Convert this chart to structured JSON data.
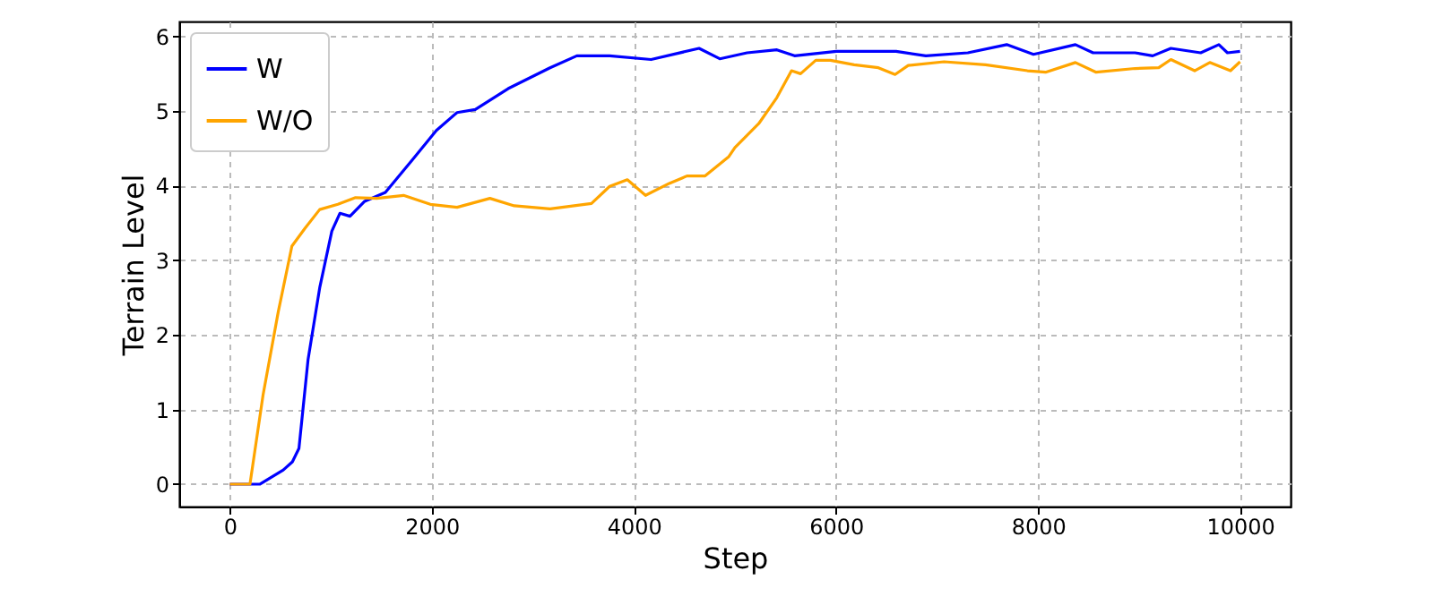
{
  "chart_data": {
    "type": "line",
    "xlabel": "Step",
    "ylabel": "Terrain Level",
    "xlim": [
      -500,
      10500
    ],
    "ylim": [
      -0.3,
      6.2
    ],
    "xticks": [
      0,
      2000,
      4000,
      6000,
      8000,
      10000
    ],
    "yticks": [
      0,
      1,
      2,
      3,
      4,
      5,
      6
    ],
    "grid": true,
    "legend": "top left",
    "line_style": "solid",
    "marker": "none",
    "series": [
      {
        "name": "W",
        "color": "#0000ff",
        "x": [
          0,
          300,
          530,
          620,
          685,
          775,
          890,
          1010,
          1090,
          1190,
          1335,
          1540,
          1810,
          2045,
          2250,
          2430,
          2755,
          3170,
          3435,
          3760,
          4170,
          4645,
          4850,
          5120,
          5415,
          5590,
          6005,
          6595,
          6890,
          7305,
          7690,
          7955,
          8370,
          8545,
          8960,
          9135,
          9315,
          9610,
          9790,
          9875,
          10000
        ],
        "values": [
          0,
          0,
          0.19,
          0.3,
          0.48,
          1.67,
          2.63,
          3.39,
          3.63,
          3.59,
          3.79,
          3.91,
          4.35,
          4.74,
          4.98,
          5.02,
          5.3,
          5.58,
          5.74,
          5.74,
          5.69,
          5.84,
          5.7,
          5.78,
          5.82,
          5.74,
          5.8,
          5.8,
          5.74,
          5.78,
          5.89,
          5.76,
          5.89,
          5.78,
          5.78,
          5.74,
          5.84,
          5.78,
          5.89,
          5.78,
          5.8
        ]
      },
      {
        "name": "W/O",
        "color": "#ffa500",
        "x": [
          0,
          200,
          330,
          480,
          615,
          745,
          890,
          1070,
          1245,
          1455,
          1720,
          1985,
          2250,
          2575,
          2815,
          3170,
          3580,
          3760,
          3935,
          4115,
          4350,
          4525,
          4705,
          4940,
          5000,
          5235,
          5415,
          5560,
          5650,
          5800,
          5945,
          6180,
          6420,
          6585,
          6715,
          7070,
          7480,
          7895,
          8075,
          8370,
          8575,
          8960,
          9195,
          9315,
          9550,
          9700,
          9905,
          10000
        ],
        "values": [
          0,
          0,
          1.2,
          2.31,
          3.19,
          3.43,
          3.68,
          3.75,
          3.84,
          3.83,
          3.87,
          3.75,
          3.71,
          3.83,
          3.73,
          3.69,
          3.76,
          3.99,
          4.08,
          3.87,
          4.03,
          4.13,
          4.13,
          4.39,
          4.51,
          4.83,
          5.18,
          5.54,
          5.5,
          5.68,
          5.68,
          5.62,
          5.58,
          5.49,
          5.61,
          5.66,
          5.62,
          5.54,
          5.52,
          5.65,
          5.52,
          5.57,
          5.58,
          5.69,
          5.54,
          5.65,
          5.54,
          5.66
        ]
      }
    ]
  }
}
